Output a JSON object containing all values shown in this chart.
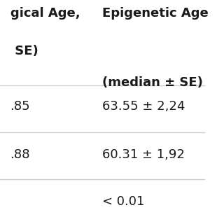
{
  "header_col1_line1": "gical Age,",
  "header_col1_line2": " SE)",
  "header_col2_line1": "Epigenetic Age",
  "header_col2_line2": "(median ± SE)",
  "row1_col1": ".85",
  "row1_col2": "63.55 ± 2,24",
  "row2_col1": ".88",
  "row2_col2": "60.31 ± 1,92",
  "row3_col1": "",
  "row3_col2": "< 0.01",
  "bg_color": "#ffffff",
  "text_color": "#1a1a1a",
  "line_color": "#cccccc",
  "header_font_size": 13,
  "cell_font_size": 13
}
